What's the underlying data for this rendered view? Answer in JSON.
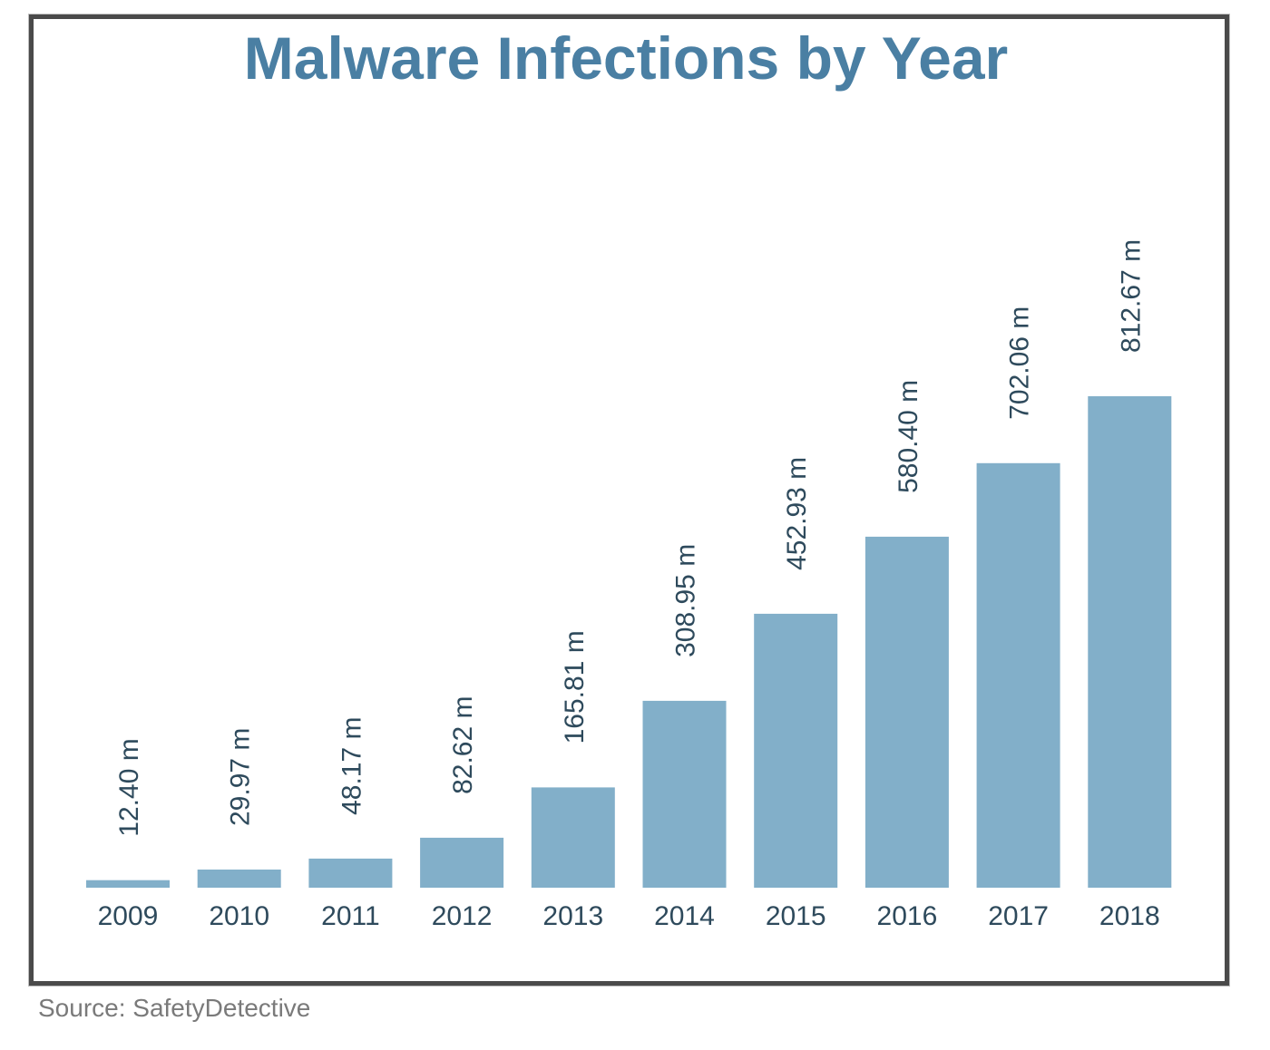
{
  "source_text": "Source: SafetyDetective",
  "colors": {
    "bar": "#82afc9",
    "title": "#4a7fa3",
    "labels": "#2e4a5c",
    "frame": "#4a4a4a"
  },
  "chart_data": {
    "type": "bar",
    "title": "Malware Infections by Year",
    "xlabel": "",
    "ylabel": "",
    "ylim": [
      0,
      812.67
    ],
    "grid": false,
    "categories": [
      "2009",
      "2010",
      "2011",
      "2012",
      "2013",
      "2014",
      "2015",
      "2016",
      "2017",
      "2018"
    ],
    "values": [
      12.4,
      29.97,
      48.17,
      82.62,
      165.81,
      308.95,
      452.93,
      580.4,
      702.06,
      812.67
    ],
    "data_labels": [
      "12.40 m",
      "29.97 m",
      "48.17 m",
      "82.62 m",
      "165.81 m",
      "308.95 m",
      "452.93 m",
      "580.40 m",
      "702.06 m",
      "812.67 m"
    ]
  }
}
